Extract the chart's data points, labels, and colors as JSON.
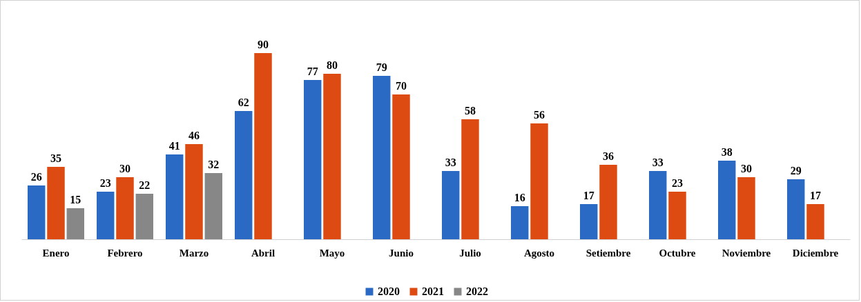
{
  "chart_data": {
    "type": "bar",
    "categories": [
      "Enero",
      "Febrero",
      "Marzo",
      "Abril",
      "Mayo",
      "Junio",
      "Julio",
      "Agosto",
      "Setiembre",
      "Octubre",
      "Noviembre",
      "Diciembre"
    ],
    "series": [
      {
        "name": "2020",
        "color": "#2a6ac4",
        "values": [
          26,
          23,
          41,
          62,
          77,
          79,
          33,
          16,
          17,
          33,
          38,
          29
        ]
      },
      {
        "name": "2021",
        "color": "#dd4a12",
        "values": [
          35,
          30,
          46,
          90,
          80,
          70,
          58,
          56,
          36,
          23,
          30,
          17
        ]
      },
      {
        "name": "2022",
        "color": "#878787",
        "values": [
          15,
          22,
          32,
          null,
          null,
          null,
          null,
          null,
          null,
          null,
          null,
          null
        ]
      }
    ],
    "data_labels": true,
    "legend": "bottom"
  }
}
